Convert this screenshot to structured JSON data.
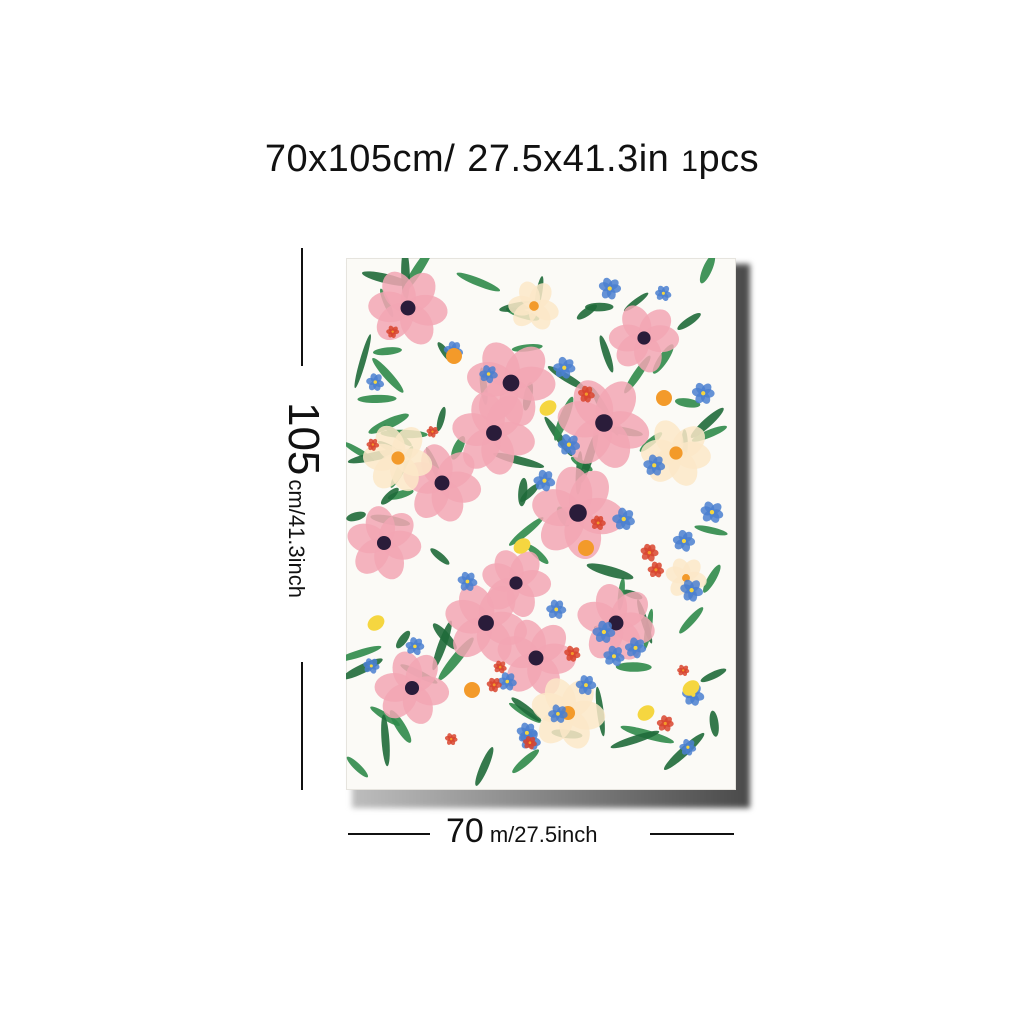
{
  "header": {
    "size_cm": "70x105cm/",
    "size_in": "27.5x41.3in",
    "quantity_num": "1",
    "quantity_unit": "pcs"
  },
  "dimension_height": {
    "value": "105",
    "unit": "cm/41.3inch"
  },
  "dimension_width": {
    "value": "70",
    "unit": "m/27.5inch"
  },
  "artwork": {
    "subject": "watercolor floral pattern",
    "palette": {
      "background": "#fbfaf6",
      "pink": "#f2a6b4",
      "pink_dark": "#e0708a",
      "leaf": "#2f8a4a",
      "leaf_dark": "#1f6a3a",
      "blue": "#4a7fd0",
      "orange": "#f39a2a",
      "yellow": "#f5d640",
      "red": "#d8442e",
      "cream": "#fbe7c8"
    }
  }
}
